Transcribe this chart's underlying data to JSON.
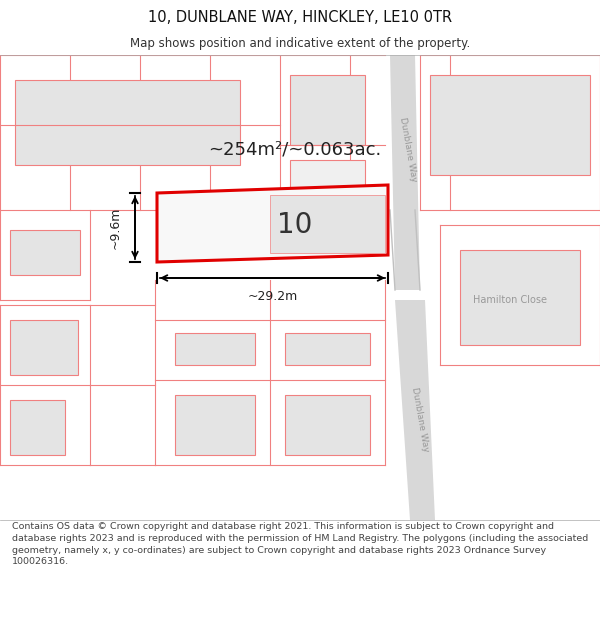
{
  "title": "10, DUNBLANE WAY, HINCKLEY, LE10 0TR",
  "subtitle": "Map shows position and indicative extent of the property.",
  "area_label": "~254m²/~0.063ac.",
  "width_label": "~29.2m",
  "height_label": "~9.6m",
  "property_number": "10",
  "footer": "Contains OS data © Crown copyright and database right 2021. This information is subject to Crown copyright and database rights 2023 and is reproduced with the permission of HM Land Registry. The polygons (including the associated geometry, namely x, y co-ordinates) are subject to Crown copyright and database rights 2023 Ordnance Survey 100026316.",
  "bg_color": "#ffffff",
  "map_bg": "#ffffff",
  "road_color": "#d8d8d8",
  "plot_border": "#f07070",
  "building_fill": "#e4e4e4",
  "prop_border": "#e00000",
  "pink_line": "#f08080",
  "road_label_color": "#999999",
  "title_fontsize": 10.5,
  "subtitle_fontsize": 8.5,
  "footer_fontsize": 6.8
}
